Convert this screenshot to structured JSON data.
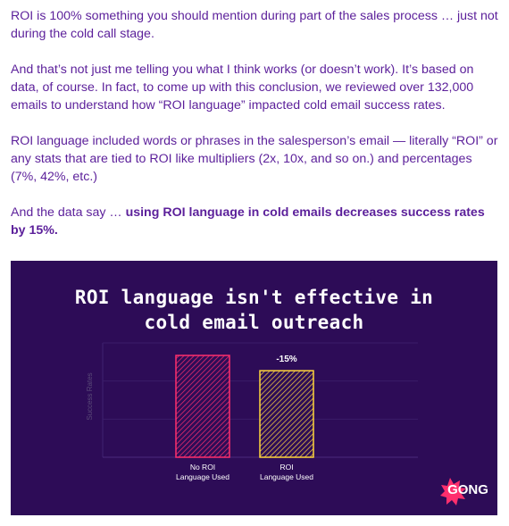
{
  "article": {
    "p1": "ROI is 100% something you should mention during part of the sales process … just not during the cold call stage.",
    "p2": "And that’s not just me telling you what I think works (or doesn’t work). It’s based on data, of course. In fact, to come up with this conclusion, we reviewed over 132,000 emails to understand how “ROI language” impacted cold email success rates.",
    "p3": "ROI language included words or phrases in the salesperson’s email — literally “ROI” or any stats that are tied to ROI like multipliers (2x, 10x, and so on.) and percentages (7%, 42%, etc.)",
    "p4_lead": "And the data say … ",
    "p4_bold": "using ROI language in cold emails decreases success rates by 15%."
  },
  "figure": {
    "brand": "GONG",
    "colors": {
      "background": "#2d0c57",
      "text": "#5b1f9a",
      "bar1": "#ff2f6d",
      "bar2": "#ffd53d",
      "brand_burst": "#ff2f6d"
    }
  },
  "chart_data": {
    "type": "bar",
    "title": "ROI language isn't effective in cold email outreach",
    "title_lines": [
      "ROI language isn't effective in",
      "cold email outreach"
    ],
    "ylabel": "Success Rates",
    "categories": [
      [
        "No ROI",
        "Language Used"
      ],
      [
        "ROI",
        "Language Used"
      ]
    ],
    "values": [
      100,
      85
    ],
    "ylim": [
      0,
      100
    ],
    "annotation": "-15%",
    "grid": true
  }
}
